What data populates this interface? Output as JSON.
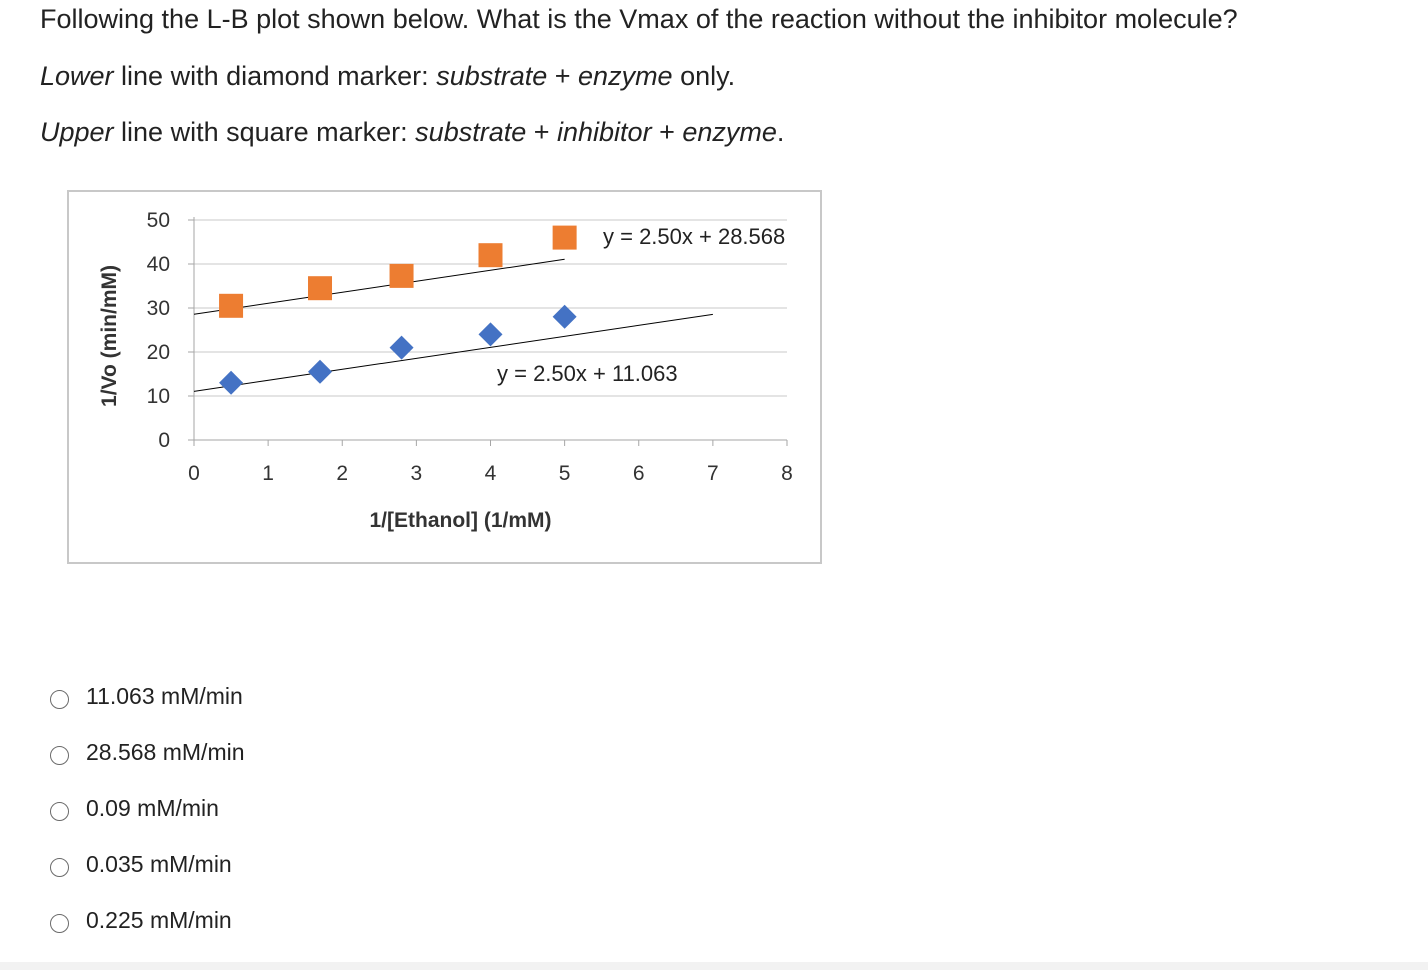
{
  "question": {
    "line1": "Following the L-B plot shown below. What is the Vmax of the reaction without the inhibitor molecule?",
    "line2_lead": "Lower",
    "line2_mid": " line with diamond marker: ",
    "line2_em1": "substrate",
    "line2_plus": " + ",
    "line2_em2": "enzyme",
    "line2_tail": " only.",
    "line3_lead": "Upper",
    "line3_mid": " line with square marker: ",
    "line3_em1": "substrate",
    "line3_plus1": " + ",
    "line3_em2": "inhibitor",
    "line3_plus2": " + ",
    "line3_em3": "enzyme",
    "line3_tail": "."
  },
  "chart_data": {
    "type": "scatter",
    "xlabel": "1/[Ethanol] (1/mM)",
    "ylabel": "1/Vo (min/mM)",
    "xlim": [
      0,
      8
    ],
    "ylim": [
      0,
      50
    ],
    "x_ticks": [
      "0",
      "1",
      "2",
      "3",
      "4",
      "5",
      "6",
      "7",
      "8"
    ],
    "y_ticks": [
      "0",
      "10",
      "20",
      "30",
      "40",
      "50"
    ],
    "grid": "horizontal",
    "series": [
      {
        "marker": "square",
        "color": "#ED7D31",
        "points": [
          [
            0.5,
            30.5
          ],
          [
            1.7,
            34.5
          ],
          [
            2.8,
            37.3
          ],
          [
            4.0,
            42.0
          ],
          [
            5.0,
            46.0
          ]
        ],
        "trendline": {
          "slope": 2.5,
          "intercept": 28.568,
          "x_range": [
            0,
            5.0
          ]
        },
        "equation": "y = 2.50x + 28.568"
      },
      {
        "marker": "diamond",
        "color": "#4472C4",
        "points": [
          [
            0.5,
            13.0
          ],
          [
            1.7,
            15.5
          ],
          [
            2.8,
            21.0
          ],
          [
            4.0,
            24.0
          ],
          [
            5.0,
            28.0
          ]
        ],
        "trendline": {
          "slope": 2.5,
          "intercept": 11.063,
          "x_range": [
            0,
            7.0
          ]
        },
        "equation": "y = 2.50x + 11.063"
      }
    ]
  },
  "options": [
    {
      "label": "11.063 mM/min"
    },
    {
      "label": "28.568 mM/min"
    },
    {
      "label": "0.09 mM/min"
    },
    {
      "label": "0.035 mM/min"
    },
    {
      "label": "0.225 mM/min"
    }
  ]
}
